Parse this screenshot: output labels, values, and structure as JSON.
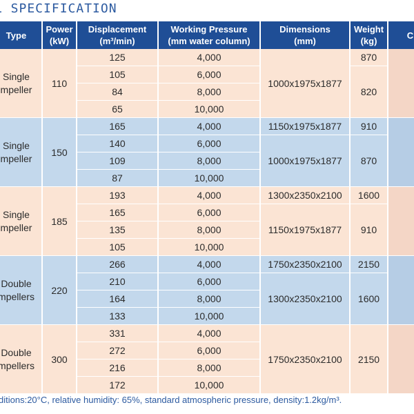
{
  "title": "L SPECIFICATION",
  "headers": {
    "type": {
      "l1": "Type",
      "l2": ""
    },
    "power": {
      "l1": "Power",
      "l2": "(kW)"
    },
    "displacement": {
      "l1": "Displacement",
      "l2": "(m³/min)"
    },
    "pressure": {
      "l1": "Working Pressure",
      "l2": "(mm water column)"
    },
    "dimensions": {
      "l1": "Dimensions",
      "l2": "(mm)"
    },
    "weight": {
      "l1": "Weight",
      "l2": "(kg)"
    },
    "extra": {
      "l1": "C",
      "l2": ""
    }
  },
  "groups": [
    {
      "type_l1": "Single",
      "type_l2": "mpeller",
      "power": "110",
      "rows": [
        {
          "displacement": "125",
          "pressure": "4,000",
          "dimensions": "1000x1975x1877",
          "weight": "870"
        },
        {
          "displacement": "105",
          "pressure": "6,000",
          "dimensions": "",
          "weight": "820"
        },
        {
          "displacement": "84",
          "pressure": "8,000",
          "dimensions": "",
          "weight": ""
        },
        {
          "displacement": "65",
          "pressure": "10,000",
          "dimensions": "",
          "weight": ""
        }
      ]
    },
    {
      "type_l1": "Single",
      "type_l2": "mpeller",
      "power": "150",
      "rows": [
        {
          "displacement": "165",
          "pressure": "4,000",
          "dimensions": "1150x1975x1877",
          "weight": "910"
        },
        {
          "displacement": "140",
          "pressure": "6,000",
          "dimensions": "1000x1975x1877",
          "weight": "870"
        },
        {
          "displacement": "109",
          "pressure": "8,000",
          "dimensions": "",
          "weight": ""
        },
        {
          "displacement": "87",
          "pressure": "10,000",
          "dimensions": "",
          "weight": ""
        }
      ]
    },
    {
      "type_l1": "Single",
      "type_l2": "mpeller",
      "power": "185",
      "rows": [
        {
          "displacement": "193",
          "pressure": "4,000",
          "dimensions": "1300x2350x2100",
          "weight": "1600"
        },
        {
          "displacement": "165",
          "pressure": "6,000",
          "dimensions": "1150x1975x1877",
          "weight": "910"
        },
        {
          "displacement": "135",
          "pressure": "8,000",
          "dimensions": "",
          "weight": ""
        },
        {
          "displacement": "105",
          "pressure": "10,000",
          "dimensions": "",
          "weight": ""
        }
      ]
    },
    {
      "type_l1": "Double",
      "type_l2": "mpellers",
      "power": "220",
      "rows": [
        {
          "displacement": "266",
          "pressure": "4,000",
          "dimensions": "1750x2350x2100",
          "weight": "2150"
        },
        {
          "displacement": "210",
          "pressure": "6,000",
          "dimensions": "1300x2350x2100",
          "weight": "1600"
        },
        {
          "displacement": "164",
          "pressure": "8,000",
          "dimensions": "",
          "weight": ""
        },
        {
          "displacement": "133",
          "pressure": "10,000",
          "dimensions": "",
          "weight": ""
        }
      ]
    },
    {
      "type_l1": "Double",
      "type_l2": "mpellers",
      "power": "300",
      "rows": [
        {
          "displacement": "331",
          "pressure": "4,000",
          "dimensions": "1750x2350x2100",
          "weight": "2150"
        },
        {
          "displacement": "272",
          "pressure": "6,000",
          "dimensions": "",
          "weight": ""
        },
        {
          "displacement": "216",
          "pressure": "8,000",
          "dimensions": "",
          "weight": ""
        },
        {
          "displacement": "172",
          "pressure": "10,000",
          "dimensions": "",
          "weight": ""
        }
      ]
    }
  ],
  "footnote": "ditions:20°C, relative humidity: 65%, standard atmospheric pressure, density:1.2kg/m³."
}
